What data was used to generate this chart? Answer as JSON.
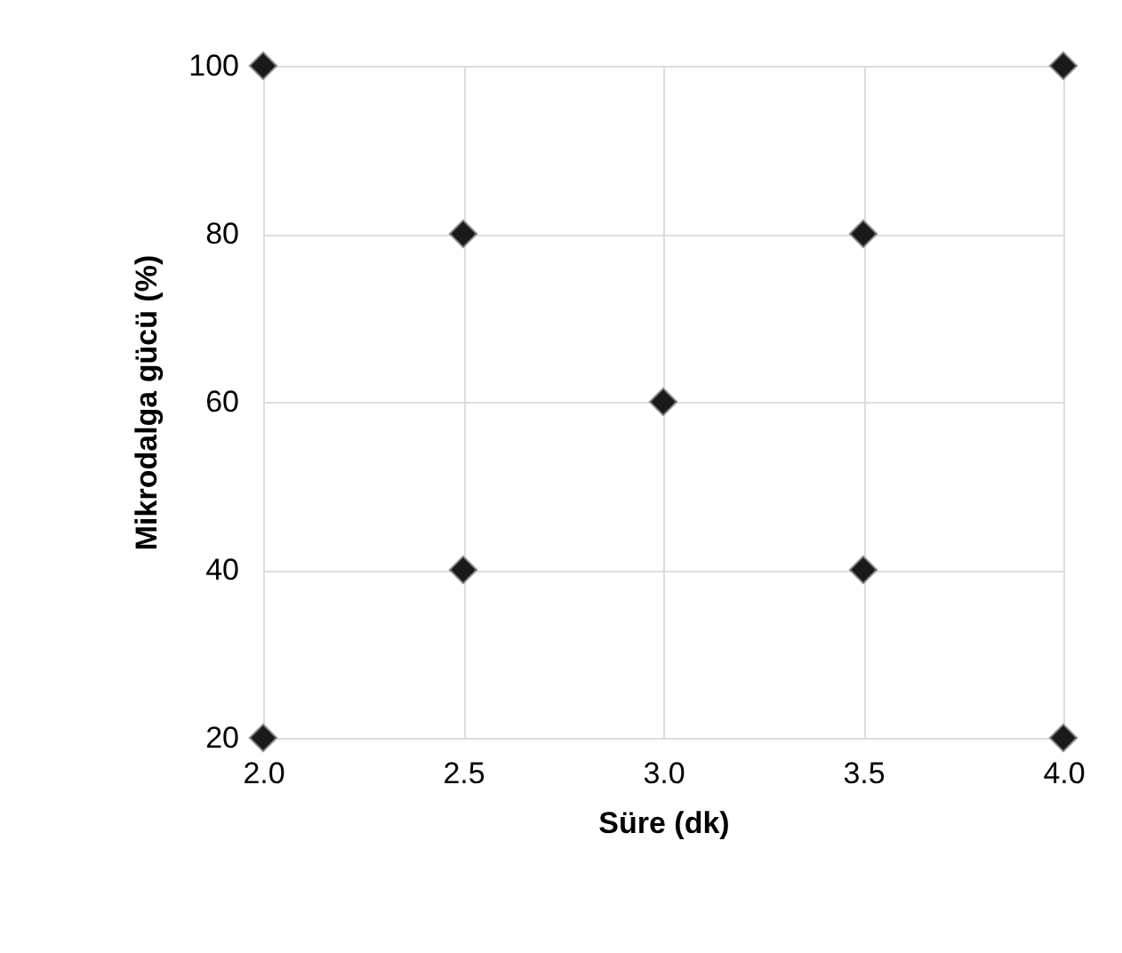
{
  "chart_data": {
    "type": "scatter",
    "xlabel": "Süre (dk)",
    "ylabel": "Mikrodalga gücü (%)",
    "x": [
      2.0,
      2.0,
      2.5,
      2.5,
      3.0,
      3.5,
      3.5,
      4.0,
      4.0
    ],
    "series": [
      {
        "color": "#1a1a1a",
        "values": [
          20,
          100,
          40,
          80,
          60,
          40,
          80,
          20,
          100
        ]
      }
    ],
    "xlim": [
      2.0,
      4.0
    ],
    "xticks": [
      {
        "value": 2.0,
        "label": "2.0"
      },
      {
        "value": 2.5,
        "label": "2.5"
      },
      {
        "value": 3.0,
        "label": "3.0"
      },
      {
        "value": 3.5,
        "label": "3.5"
      },
      {
        "value": 4.0,
        "label": "4.0"
      }
    ],
    "ylim": [
      20,
      100
    ],
    "yticks": [
      20,
      40,
      60,
      80,
      100
    ],
    "grid": true,
    "marker": "diamond"
  }
}
